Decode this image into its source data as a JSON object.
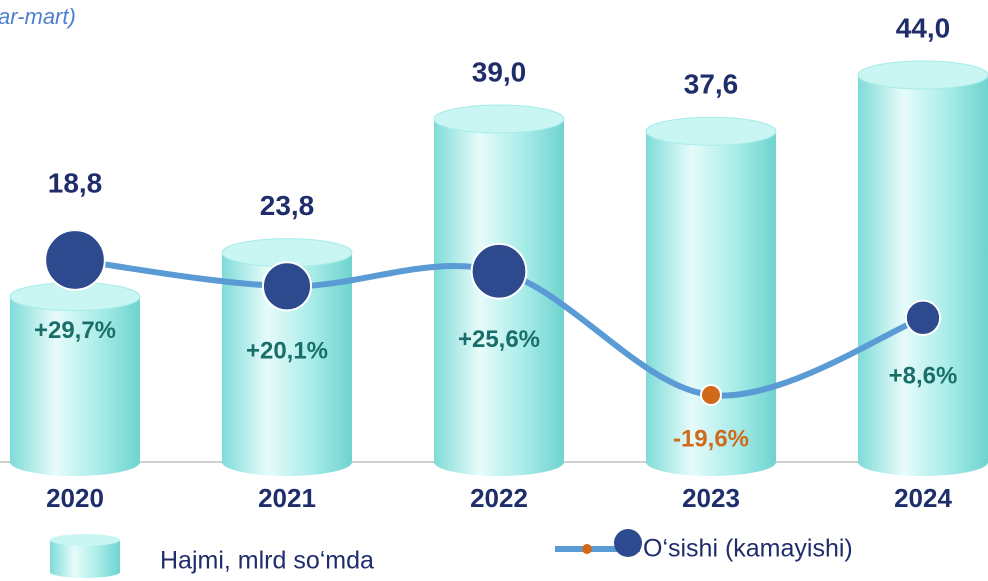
{
  "chart_data": {
    "type": "bar-line",
    "title": "ar-mart)",
    "categories": [
      "2020",
      "2021",
      "2022",
      "2023",
      "2024"
    ],
    "series": [
      {
        "name": "Hajmi, mlrd so‘mda",
        "type": "bar",
        "color": "#9feae6",
        "values": [
          18.8,
          23.8,
          39.0,
          37.6,
          44.0
        ],
        "value_labels": [
          "18,8",
          "23,8",
          "39,0",
          "37,6",
          "44,0"
        ]
      },
      {
        "name": "O‘sishi (kamayishi)",
        "type": "line",
        "axis": "y2",
        "color": "#5b9bd5",
        "marker_color": "#2e4a8e",
        "negative_color": "#d06a1a",
        "values": [
          29.7,
          20.1,
          25.6,
          -19.6,
          8.6
        ],
        "value_labels": [
          "+29,7%",
          "+20,1%",
          "+25,6%",
          "-19,6%",
          "+8,6%"
        ]
      }
    ]
  }
}
